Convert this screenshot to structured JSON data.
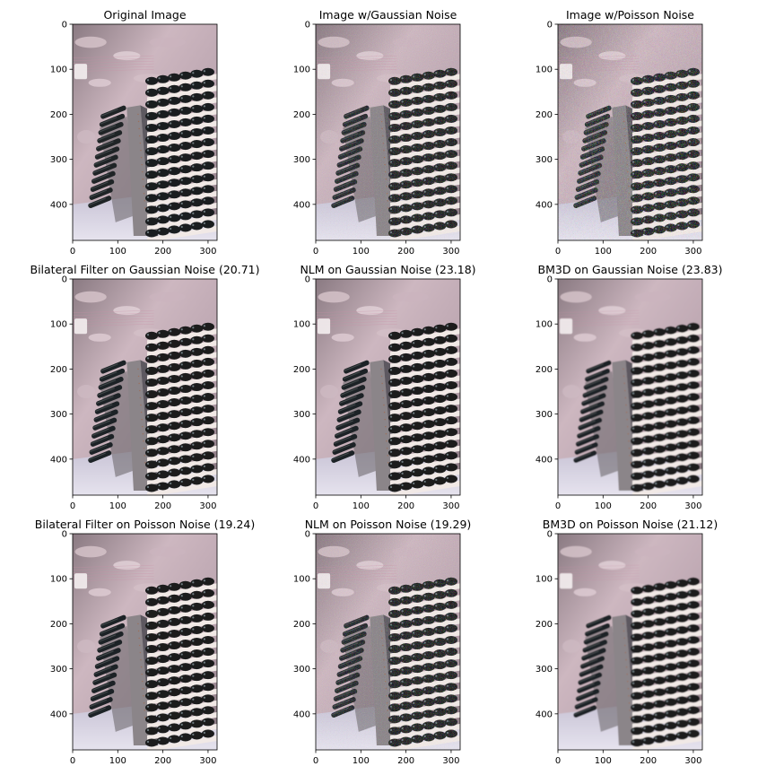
{
  "figure": {
    "panels": [
      {
        "title": "Original Image",
        "variant": "original"
      },
      {
        "title": "Image w/Gaussian Noise",
        "variant": "gaussian"
      },
      {
        "title": "Image w/Poisson Noise",
        "variant": "poisson"
      },
      {
        "title": "Bilateral Filter on Gaussian Noise (20.71)",
        "variant": "smooth"
      },
      {
        "title": "NLM on Gaussian Noise (23.18)",
        "variant": "smooth"
      },
      {
        "title": "BM3D on Gaussian Noise (23.83)",
        "variant": "blur"
      },
      {
        "title": "Bilateral Filter on Poisson Noise (19.24)",
        "variant": "smooth"
      },
      {
        "title": "NLM on Poisson Noise (19.29)",
        "variant": "gaussian"
      },
      {
        "title": "BM3D on Poisson Noise (21.12)",
        "variant": "blur"
      }
    ],
    "x_ticks": [
      0,
      100,
      200,
      300
    ],
    "y_ticks": [
      0,
      100,
      200,
      300,
      400
    ],
    "image_extent": {
      "width": 320,
      "height": 480
    }
  }
}
